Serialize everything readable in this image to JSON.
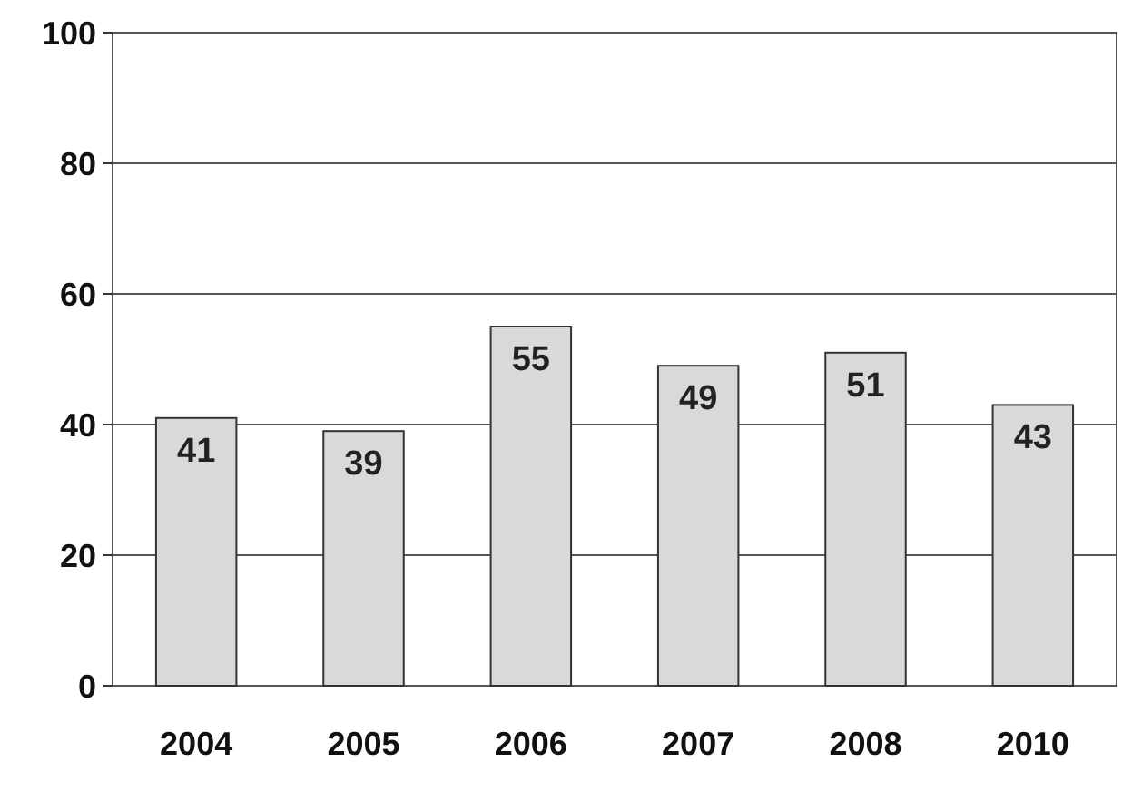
{
  "chart_data": {
    "type": "bar",
    "categories": [
      "2004",
      "2005",
      "2006",
      "2007",
      "2008",
      "2010"
    ],
    "values": [
      41,
      39,
      55,
      49,
      51,
      43
    ],
    "color": "#d9d9d9",
    "ylim": [
      0,
      100
    ],
    "yticks": [
      0,
      20,
      40,
      60,
      80,
      100
    ],
    "grid": "y",
    "data_labels": true
  }
}
